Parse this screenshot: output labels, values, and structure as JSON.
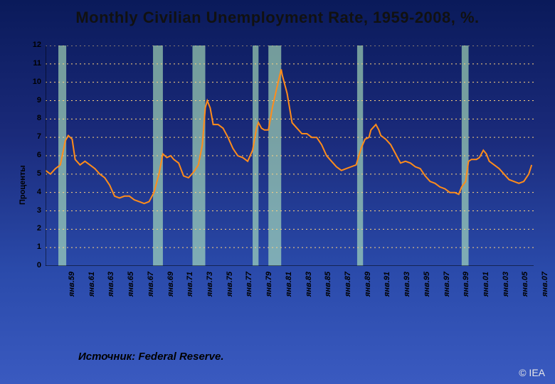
{
  "title": "Monthly Civilian Unemployment Rate, 1959-2008, %.",
  "ylabel": "Проценты",
  "source": "Источник: Federal Reserve.",
  "copyright": "© IEA",
  "chart": {
    "type": "line",
    "background_color": "transparent",
    "grid_color": "#ffd480",
    "axis_color": "#000000",
    "series_color": "#ff8c1a",
    "recession_band_color": "#b8f0c0",
    "line_width": 2,
    "ylim": [
      0,
      12
    ],
    "ytick_step": 1,
    "yticks": [
      0,
      1,
      2,
      3,
      4,
      5,
      6,
      7,
      8,
      9,
      10,
      11,
      12
    ],
    "xlim": [
      1959,
      2008.5
    ],
    "xtick_step": 2,
    "xtick_prefix": "янв.",
    "xticks_years": [
      59,
      61,
      63,
      65,
      67,
      69,
      71,
      73,
      75,
      77,
      79,
      81,
      83,
      85,
      87,
      89,
      91,
      93,
      95,
      97,
      99,
      "01",
      "03",
      "05",
      "07"
    ],
    "recession_bands": [
      [
        1960.3,
        1961.1
      ],
      [
        1969.9,
        1970.9
      ],
      [
        1973.9,
        1975.2
      ],
      [
        1980.0,
        1980.6
      ],
      [
        1981.6,
        1982.9
      ],
      [
        1990.6,
        1991.2
      ],
      [
        2001.2,
        2001.9
      ]
    ],
    "data": [
      [
        1959.0,
        5.2
      ],
      [
        1959.5,
        5.0
      ],
      [
        1960.0,
        5.3
      ],
      [
        1960.5,
        5.5
      ],
      [
        1961.0,
        6.8
      ],
      [
        1961.3,
        7.1
      ],
      [
        1961.7,
        6.9
      ],
      [
        1962.0,
        5.8
      ],
      [
        1962.5,
        5.5
      ],
      [
        1963.0,
        5.7
      ],
      [
        1963.5,
        5.5
      ],
      [
        1964.0,
        5.3
      ],
      [
        1964.5,
        5.0
      ],
      [
        1965.0,
        4.8
      ],
      [
        1965.5,
        4.4
      ],
      [
        1966.0,
        3.8
      ],
      [
        1966.5,
        3.7
      ],
      [
        1967.0,
        3.8
      ],
      [
        1967.5,
        3.8
      ],
      [
        1968.0,
        3.6
      ],
      [
        1968.5,
        3.5
      ],
      [
        1969.0,
        3.4
      ],
      [
        1969.5,
        3.5
      ],
      [
        1970.0,
        4.0
      ],
      [
        1970.5,
        5.0
      ],
      [
        1970.9,
        6.1
      ],
      [
        1971.3,
        5.9
      ],
      [
        1971.7,
        6.0
      ],
      [
        1972.0,
        5.8
      ],
      [
        1972.5,
        5.6
      ],
      [
        1973.0,
        4.9
      ],
      [
        1973.5,
        4.8
      ],
      [
        1974.0,
        5.1
      ],
      [
        1974.5,
        5.5
      ],
      [
        1974.9,
        6.6
      ],
      [
        1975.2,
        8.6
      ],
      [
        1975.4,
        9.0
      ],
      [
        1975.7,
        8.6
      ],
      [
        1976.0,
        7.7
      ],
      [
        1976.5,
        7.7
      ],
      [
        1977.0,
        7.5
      ],
      [
        1977.5,
        7.0
      ],
      [
        1978.0,
        6.4
      ],
      [
        1978.5,
        6.0
      ],
      [
        1979.0,
        5.9
      ],
      [
        1979.5,
        5.7
      ],
      [
        1980.0,
        6.3
      ],
      [
        1980.4,
        7.5
      ],
      [
        1980.6,
        7.8
      ],
      [
        1980.9,
        7.5
      ],
      [
        1981.2,
        7.4
      ],
      [
        1981.6,
        7.4
      ],
      [
        1982.0,
        8.6
      ],
      [
        1982.5,
        9.8
      ],
      [
        1982.9,
        10.7
      ],
      [
        1983.0,
        10.4
      ],
      [
        1983.5,
        9.4
      ],
      [
        1984.0,
        7.8
      ],
      [
        1984.5,
        7.5
      ],
      [
        1985.0,
        7.2
      ],
      [
        1985.5,
        7.2
      ],
      [
        1986.0,
        7.0
      ],
      [
        1986.5,
        7.0
      ],
      [
        1987.0,
        6.6
      ],
      [
        1987.5,
        6.0
      ],
      [
        1988.0,
        5.7
      ],
      [
        1988.5,
        5.4
      ],
      [
        1989.0,
        5.2
      ],
      [
        1989.5,
        5.3
      ],
      [
        1990.0,
        5.4
      ],
      [
        1990.5,
        5.5
      ],
      [
        1991.0,
        6.4
      ],
      [
        1991.4,
        6.9
      ],
      [
        1991.8,
        7.0
      ],
      [
        1992.0,
        7.4
      ],
      [
        1992.5,
        7.7
      ],
      [
        1992.8,
        7.4
      ],
      [
        1993.0,
        7.1
      ],
      [
        1993.5,
        6.9
      ],
      [
        1994.0,
        6.6
      ],
      [
        1994.5,
        6.1
      ],
      [
        1995.0,
        5.6
      ],
      [
        1995.5,
        5.7
      ],
      [
        1996.0,
        5.6
      ],
      [
        1996.5,
        5.4
      ],
      [
        1997.0,
        5.3
      ],
      [
        1997.5,
        4.9
      ],
      [
        1998.0,
        4.6
      ],
      [
        1998.5,
        4.5
      ],
      [
        1999.0,
        4.3
      ],
      [
        1999.5,
        4.2
      ],
      [
        2000.0,
        4.0
      ],
      [
        2000.5,
        4.0
      ],
      [
        2000.9,
        3.9
      ],
      [
        2001.2,
        4.3
      ],
      [
        2001.6,
        4.6
      ],
      [
        2001.9,
        5.7
      ],
      [
        2002.2,
        5.8
      ],
      [
        2002.7,
        5.8
      ],
      [
        2003.0,
        5.9
      ],
      [
        2003.4,
        6.3
      ],
      [
        2003.7,
        6.1
      ],
      [
        2004.0,
        5.7
      ],
      [
        2004.5,
        5.5
      ],
      [
        2005.0,
        5.3
      ],
      [
        2005.5,
        5.0
      ],
      [
        2006.0,
        4.7
      ],
      [
        2006.5,
        4.6
      ],
      [
        2007.0,
        4.5
      ],
      [
        2007.5,
        4.6
      ],
      [
        2008.0,
        5.0
      ],
      [
        2008.3,
        5.5
      ]
    ]
  }
}
